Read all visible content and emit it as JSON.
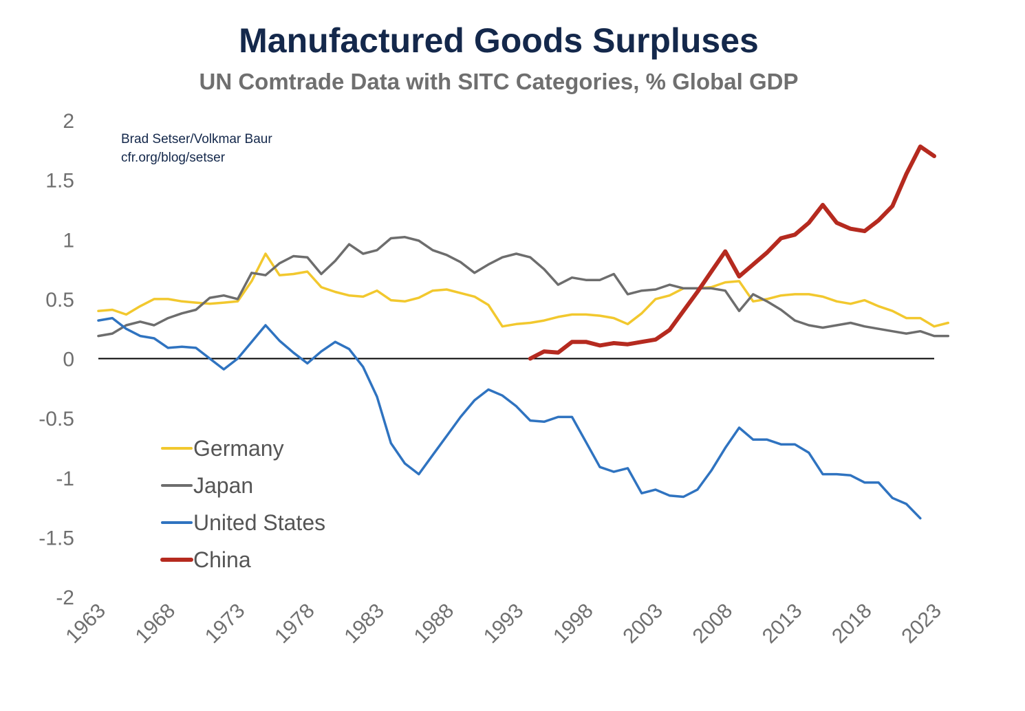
{
  "chart_data": {
    "type": "line",
    "title": "Manufactured Goods Surpluses",
    "subtitle": "UN Comtrade Data with SITC Categories, % Global GDP",
    "attribution": [
      "Brad Setser/Volkmar Baur",
      "cfr.org/blog/setser"
    ],
    "xlabel": "",
    "ylabel": "",
    "xlim": [
      1963,
      2023
    ],
    "ylim": [
      -2,
      2
    ],
    "x_ticks": [
      1963,
      1968,
      1973,
      1978,
      1983,
      1988,
      1993,
      1998,
      2003,
      2008,
      2013,
      2018,
      2023
    ],
    "y_ticks": [
      2,
      1.5,
      1,
      0.5,
      0,
      -0.5,
      -1,
      -1.5,
      -2
    ],
    "zero_line": true,
    "legend_position": "lower-left",
    "title_color": "#14284b",
    "series": [
      {
        "name": "Germany",
        "color": "#f2c82e",
        "start_year": 1963,
        "values": [
          0.4,
          0.41,
          0.37,
          0.44,
          0.5,
          0.5,
          0.48,
          0.47,
          0.46,
          0.47,
          0.48,
          0.65,
          0.88,
          0.7,
          0.71,
          0.73,
          0.6,
          0.56,
          0.53,
          0.52,
          0.57,
          0.49,
          0.48,
          0.51,
          0.57,
          0.58,
          0.55,
          0.52,
          0.45,
          0.27,
          0.29,
          0.3,
          0.32,
          0.35,
          0.37,
          0.37,
          0.36,
          0.34,
          0.29,
          0.38,
          0.5,
          0.53,
          0.59,
          0.59,
          0.6,
          0.64,
          0.65,
          0.48,
          0.5,
          0.53,
          0.54,
          0.54,
          0.52,
          0.48,
          0.46,
          0.49,
          0.44,
          0.4,
          0.34,
          0.34,
          0.27,
          0.3
        ]
      },
      {
        "name": "Japan",
        "color": "#6d6d6d",
        "start_year": 1963,
        "values": [
          0.19,
          0.21,
          0.28,
          0.31,
          0.28,
          0.34,
          0.38,
          0.41,
          0.51,
          0.53,
          0.5,
          0.72,
          0.7,
          0.8,
          0.86,
          0.85,
          0.71,
          0.82,
          0.96,
          0.88,
          0.91,
          1.01,
          1.02,
          0.99,
          0.91,
          0.87,
          0.81,
          0.72,
          0.79,
          0.85,
          0.88,
          0.85,
          0.75,
          0.62,
          0.68,
          0.66,
          0.66,
          0.71,
          0.54,
          0.57,
          0.58,
          0.62,
          0.59,
          0.59,
          0.59,
          0.57,
          0.4,
          0.54,
          0.48,
          0.41,
          0.32,
          0.28,
          0.26,
          0.28,
          0.3,
          0.27,
          0.25,
          0.23,
          0.21,
          0.23,
          0.19,
          0.19
        ]
      },
      {
        "name": "United States",
        "color": "#2f73c0",
        "start_year": 1963,
        "values": [
          0.32,
          0.34,
          0.25,
          0.19,
          0.17,
          0.09,
          0.1,
          0.09,
          0.0,
          -0.09,
          0.0,
          0.14,
          0.28,
          0.15,
          0.05,
          -0.04,
          0.06,
          0.14,
          0.08,
          -0.07,
          -0.32,
          -0.71,
          -0.88,
          -0.97,
          -0.81,
          -0.65,
          -0.49,
          -0.35,
          -0.26,
          -0.31,
          -0.4,
          -0.52,
          -0.53,
          -0.49,
          -0.49,
          -0.7,
          -0.91,
          -0.95,
          -0.92,
          -1.13,
          -1.1,
          -1.15,
          -1.16,
          -1.1,
          -0.94,
          -0.75,
          -0.58,
          -0.68,
          -0.68,
          -0.72,
          -0.72,
          -0.79,
          -0.97,
          -0.97,
          -0.98,
          -1.04,
          -1.04,
          -1.17,
          -1.22,
          -1.34
        ]
      },
      {
        "name": "China",
        "color": "#b52a1f",
        "start_year": 1994,
        "values": [
          0.0,
          0.06,
          0.05,
          0.14,
          0.14,
          0.11,
          0.13,
          0.12,
          0.14,
          0.16,
          0.24,
          0.4,
          0.56,
          0.73,
          0.9,
          0.69,
          0.79,
          0.89,
          1.01,
          1.04,
          1.14,
          1.29,
          1.14,
          1.09,
          1.07,
          1.16,
          1.28,
          1.55,
          1.78,
          1.7
        ]
      }
    ]
  }
}
